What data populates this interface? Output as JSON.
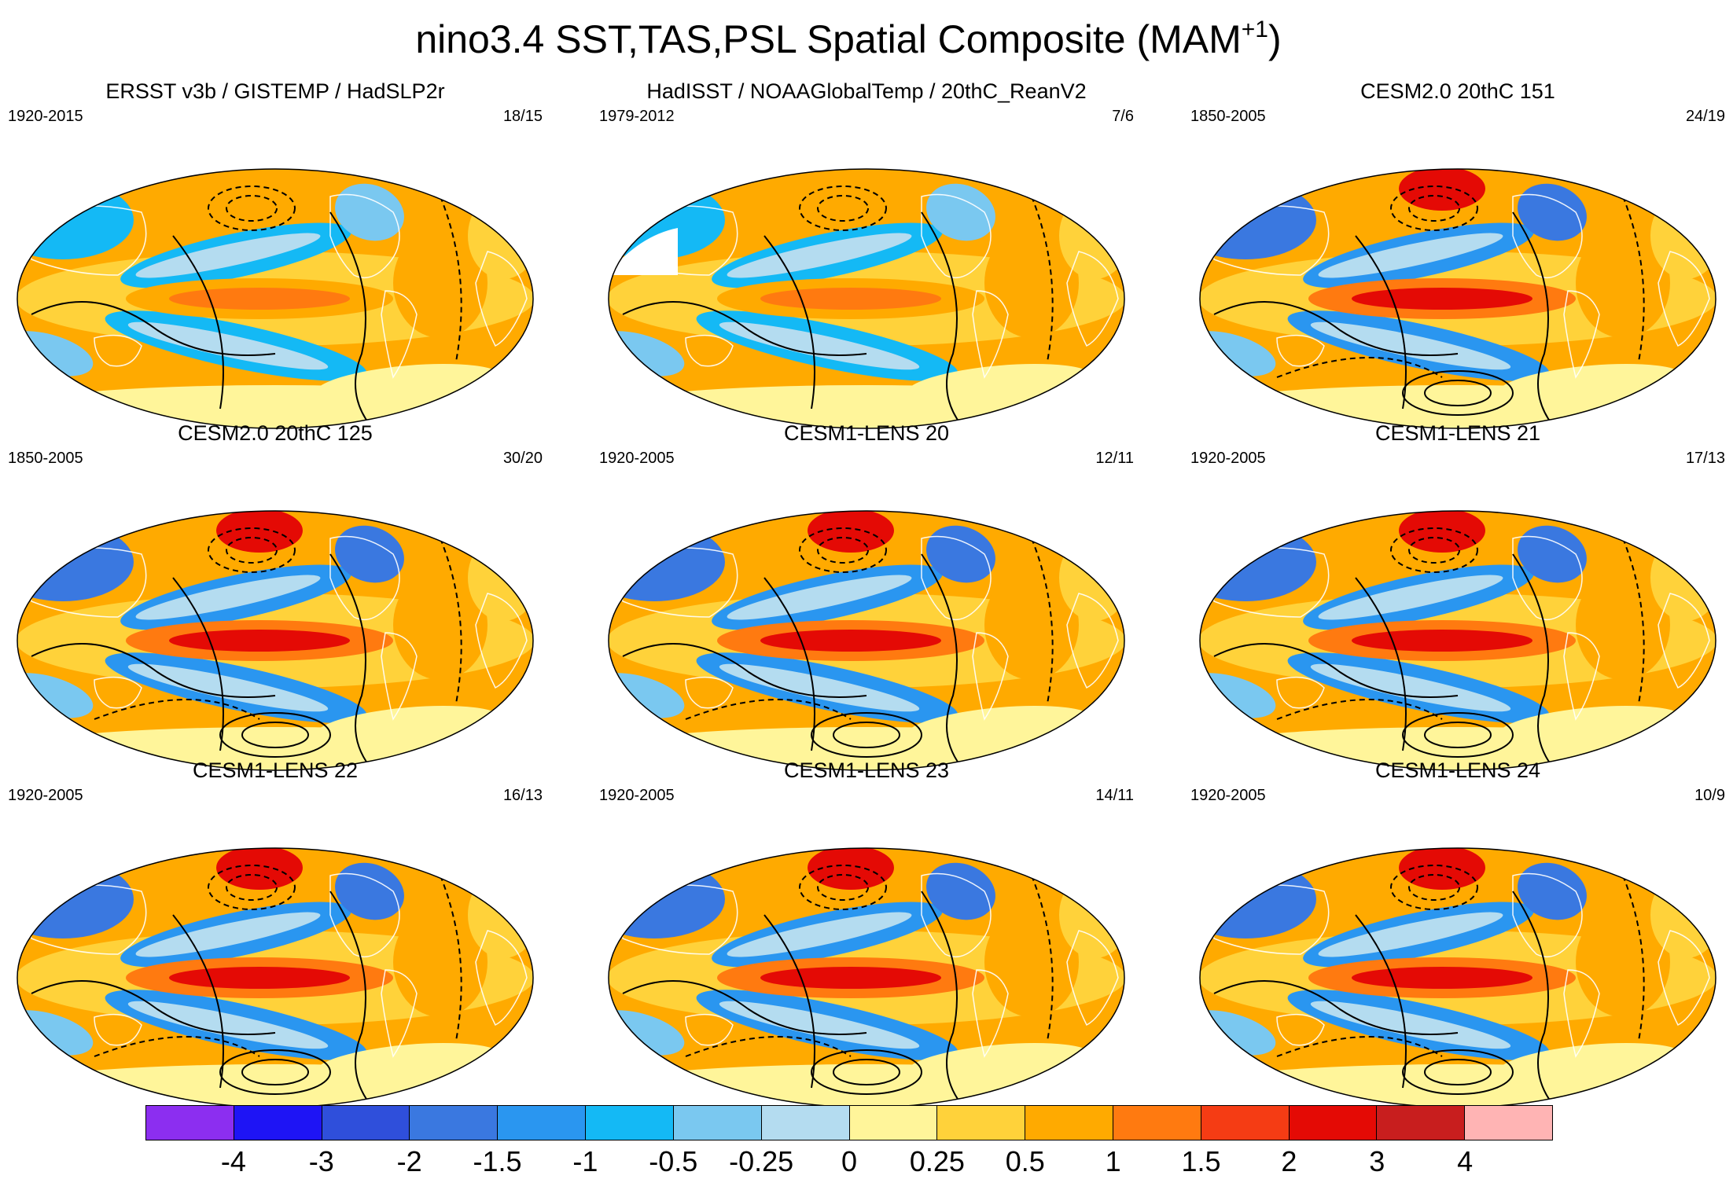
{
  "title": {
    "main": "nino3.4 SST,TAS,PSL Spatial Composite (MAM",
    "superscript": "+1",
    "close": ")"
  },
  "panels": [
    {
      "title": "ERSST v3b / GISTEMP / HadSLP2r",
      "years": "1920-2015",
      "counts": "18/15",
      "pattern": "obs_weak"
    },
    {
      "title": "HadISST / NOAAGlobalTemp / 20thC_ReanV2",
      "years": "1979-2012",
      "counts": "7/6",
      "pattern": "obs_gaps"
    },
    {
      "title": "CESM2.0 20thC 151",
      "years": "1850-2005",
      "counts": "24/19",
      "pattern": "model_strong"
    },
    {
      "title": "CESM2.0 20thC 125",
      "years": "1850-2005",
      "counts": "30/20",
      "pattern": "model_strong"
    },
    {
      "title": "CESM1-LENS 20",
      "years": "1920-2005",
      "counts": "12/11",
      "pattern": "model_strong"
    },
    {
      "title": "CESM1-LENS 21",
      "years": "1920-2005",
      "counts": "17/13",
      "pattern": "model_strong"
    },
    {
      "title": "CESM1-LENS 22",
      "years": "1920-2005",
      "counts": "16/13",
      "pattern": "model_strong"
    },
    {
      "title": "CESM1-LENS 23",
      "years": "1920-2005",
      "counts": "14/11",
      "pattern": "model_strong"
    },
    {
      "title": "CESM1-LENS 24",
      "years": "1920-2005",
      "counts": "10/9",
      "pattern": "model_strong"
    }
  ],
  "colorbar": {
    "colors": [
      "#8c2ef0",
      "#1e14f5",
      "#2f4fdb",
      "#3a78e0",
      "#2a96f0",
      "#14b9f5",
      "#7ac8f0",
      "#b4dcf0",
      "#fff59a",
      "#ffd23a",
      "#ffaa00",
      "#ff7a10",
      "#f53c14",
      "#e40a05",
      "#c81e1e",
      "#ffb4b4"
    ],
    "labels": [
      "-4",
      "-3",
      "-2",
      "-1.5",
      "-1",
      "-0.5",
      "-0.25",
      "0",
      "0.25",
      "0.5",
      "1",
      "1.5",
      "2",
      "3",
      "4"
    ]
  }
}
